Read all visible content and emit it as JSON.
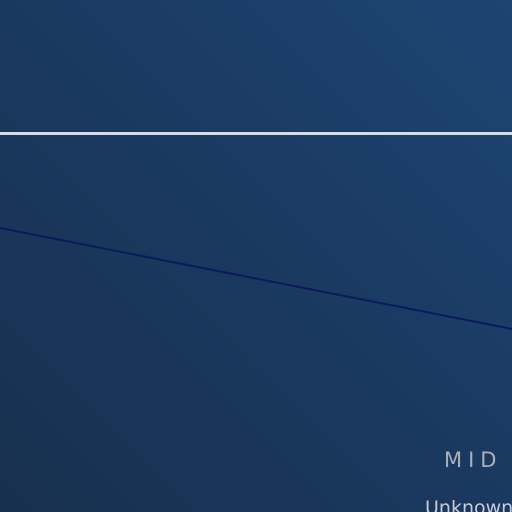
{
  "overlay": {
    "label": "MID",
    "sublabel": "Unknown"
  },
  "colors": {
    "background_top_right": "#1d4572",
    "background_bottom_left": "#18304f",
    "horizon_line": "#d9dbe0",
    "diagonal_line": "#0b1a5c",
    "label_text": "#a9b0ba"
  }
}
